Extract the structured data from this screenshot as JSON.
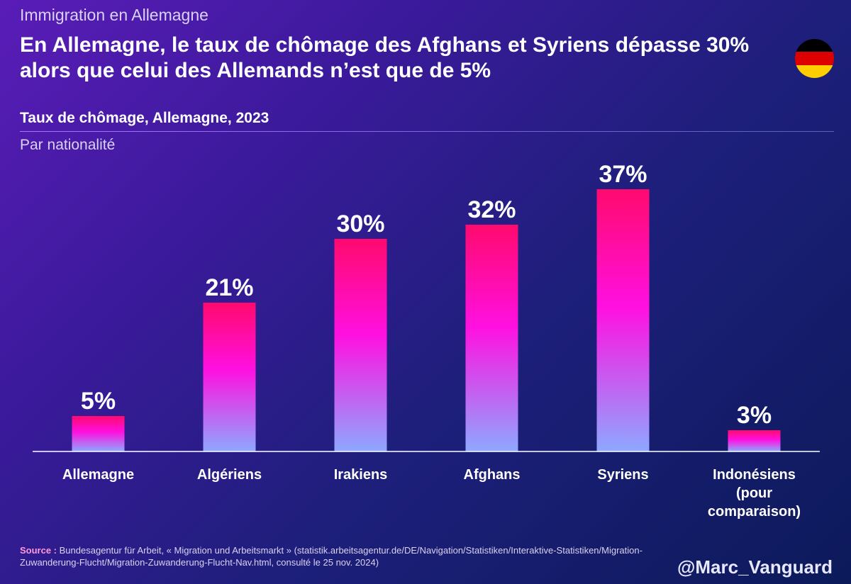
{
  "header": {
    "kicker": "Immigration en Allemagne",
    "headline": "En Allemagne, le taux de chômage des Afghans et Syriens dépasse 30% alors que celui des Allemands n’est que de 5%"
  },
  "flag": {
    "icon": "germany-flag-icon",
    "colors": [
      "#000000",
      "#dd0000",
      "#ffce00"
    ]
  },
  "chart_data": {
    "type": "bar",
    "title": "Taux de chômage, Allemagne, 2023",
    "subtitle": "Par nationalité",
    "categories": [
      "Allemagne",
      "Algériens",
      "Irakiens",
      "Afghans",
      "Syriens",
      "Indonésiens (pour comparaison)"
    ],
    "values": [
      5,
      21,
      30,
      32,
      37,
      3
    ],
    "labels": [
      "5%",
      "21%",
      "30%",
      "32%",
      "37%",
      "3%"
    ],
    "ylim": [
      0,
      37
    ],
    "unit": "%",
    "xlabel": "",
    "ylabel": "",
    "grid": false,
    "colors": {
      "bar_top": "#ff0a6e",
      "bar_mid": "#ff10e0",
      "bar_bottom": "#8ea8ff",
      "axis": "#ffffff"
    }
  },
  "source": {
    "label": "Source :",
    "text": "Bundesagentur für Arbeit, « Migration und Arbeitsmarkt » (statistik.arbeitsagentur.de/DE/Navigation/Statistiken/Interaktive-Statistiken/Migration-Zuwanderung-Flucht/Migration-Zuwanderung-Flucht-Nav.html, consulté le 25 nov. 2024)"
  },
  "credit": {
    "handle": "@Marc_Vanguard"
  }
}
